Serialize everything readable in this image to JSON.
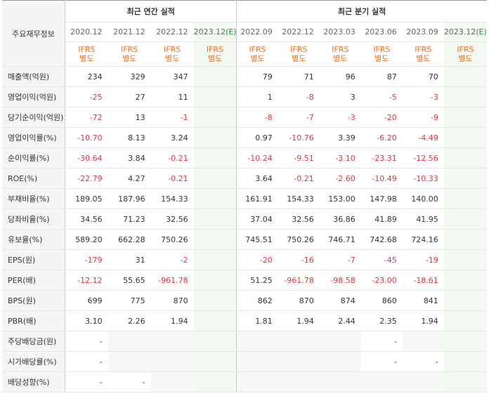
{
  "header": {
    "row_label": "주요재무정보",
    "annual_group": "최근 연간 실적",
    "quarterly_group": "최근 분기 실적"
  },
  "periods": [
    {
      "label": "2020.12",
      "est": ""
    },
    {
      "label": "2021.12",
      "est": ""
    },
    {
      "label": "2022.12",
      "est": ""
    },
    {
      "label": "2023.12",
      "est": "(E)"
    },
    {
      "label": "2022.09",
      "est": ""
    },
    {
      "label": "2022.12",
      "est": ""
    },
    {
      "label": "2023.03",
      "est": ""
    },
    {
      "label": "2023.06",
      "est": ""
    },
    {
      "label": "2023.09",
      "est": ""
    },
    {
      "label": "2023.12",
      "est": "(E)"
    }
  ],
  "ifrs_label": [
    "IFRS",
    "별도"
  ],
  "rows": [
    {
      "label": "매출액(억원)",
      "values": [
        "234",
        "329",
        "347",
        "",
        "79",
        "71",
        "96",
        "87",
        "70",
        ""
      ]
    },
    {
      "label": "영업이익(억원)",
      "values": [
        "-25",
        "27",
        "11",
        "",
        "1",
        "-8",
        "3",
        "-5",
        "-3",
        ""
      ]
    },
    {
      "label": "당기순이익(억원)",
      "values": [
        "-72",
        "13",
        "-1",
        "",
        "-8",
        "-7",
        "-3",
        "-20",
        "-9",
        ""
      ]
    },
    {
      "label": "영업이익률(%)",
      "values": [
        "-10.70",
        "8.13",
        "3.24",
        "",
        "0.97",
        "-10.76",
        "3.39",
        "-6.20",
        "-4.49",
        ""
      ]
    },
    {
      "label": "순이익률(%)",
      "values": [
        "-30.64",
        "3.84",
        "-0.21",
        "",
        "-10.24",
        "-9.51",
        "-3.10",
        "-23.31",
        "-12.56",
        ""
      ]
    },
    {
      "label": "ROE(%)",
      "values": [
        "-22.79",
        "4.27",
        "-0.21",
        "",
        "3.64",
        "-0.21",
        "-2.60",
        "-10.49",
        "-10.33",
        ""
      ]
    },
    {
      "label": "부채비율(%)",
      "values": [
        "189.05",
        "187.96",
        "154.33",
        "",
        "161.91",
        "154.33",
        "153.00",
        "147.98",
        "140.00",
        ""
      ]
    },
    {
      "label": "당좌비율(%)",
      "values": [
        "34.56",
        "71.23",
        "32.56",
        "",
        "37.04",
        "32.56",
        "36.86",
        "41.89",
        "41.95",
        ""
      ]
    },
    {
      "label": "유보율(%)",
      "values": [
        "589.20",
        "662.28",
        "750.26",
        "",
        "745.51",
        "750.26",
        "746.71",
        "742.68",
        "724.16",
        ""
      ]
    },
    {
      "label": "EPS(원)",
      "values": [
        "-179",
        "31",
        "-2",
        "",
        "-20",
        "-16",
        "-7",
        "-45",
        "-19",
        ""
      ]
    },
    {
      "label": "PER(배)",
      "values": [
        "-12.12",
        "55.65",
        "-961.78",
        "",
        "51.25",
        "-961.78",
        "-98.58",
        "-23.00",
        "-18.61",
        ""
      ]
    },
    {
      "label": "BPS(원)",
      "values": [
        "699",
        "775",
        "870",
        "",
        "862",
        "870",
        "874",
        "860",
        "841",
        ""
      ]
    },
    {
      "label": "PBR(배)",
      "values": [
        "3.10",
        "2.26",
        "1.94",
        "",
        "1.81",
        "1.94",
        "2.44",
        "2.35",
        "1.94",
        ""
      ]
    },
    {
      "label": "주당배당금(원)",
      "values": [
        "-",
        "",
        "",
        "",
        "",
        "",
        "",
        "-",
        "",
        ""
      ]
    },
    {
      "label": "시가배당률(%)",
      "values": [
        "-",
        "",
        "",
        "",
        "",
        "",
        "",
        "-",
        "-",
        ""
      ]
    },
    {
      "label": "배당성향(%)",
      "values": [
        "-",
        "-",
        "",
        "",
        "",
        "",
        "",
        "",
        "",
        ""
      ]
    }
  ],
  "section_breaks_before_rows": [
    3,
    6,
    9,
    13
  ],
  "colors": {
    "negative": "#e8323c",
    "ifrs": "#ff6d18",
    "estimate_label": "#1a9a3a",
    "estimate_column_bg": "#f2f9f1",
    "empty_cell_bg": "#f7f7f7",
    "label_column_bg": "#f5f5f5"
  }
}
